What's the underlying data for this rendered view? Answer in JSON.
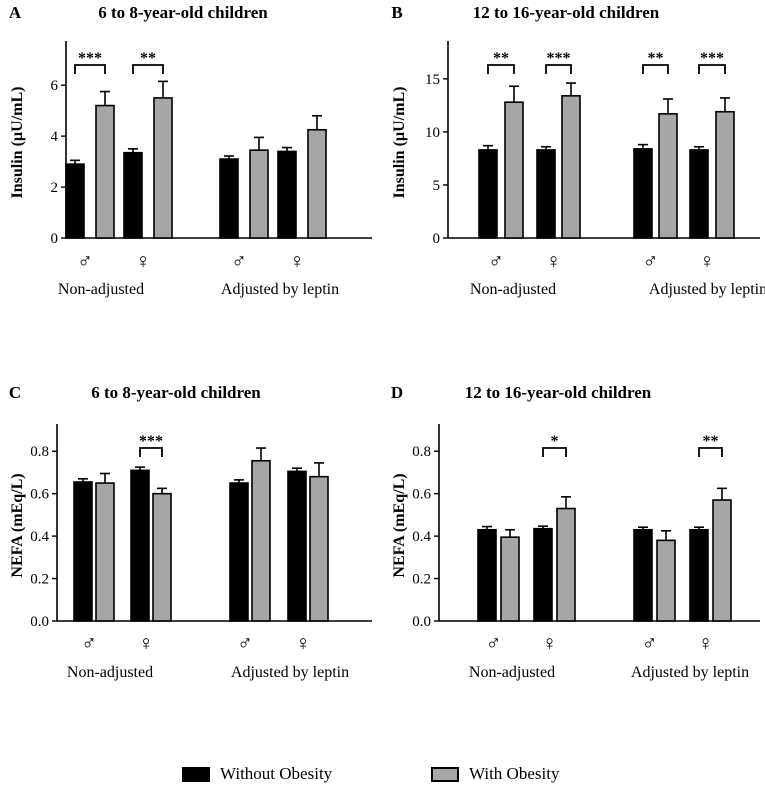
{
  "colors": {
    "without": "#000000",
    "with": "#a6a6a6",
    "axis": "#000000"
  },
  "legend": {
    "without_label": "Without Obesity",
    "with_label": "With Obesity"
  },
  "chart_data": [
    {
      "type": "bar",
      "panel": "A",
      "title": "6 to 8-year-old children",
      "ylabel": "Insulin (µU/mL)",
      "ylim": [
        0,
        7.5
      ],
      "yticks": [
        0,
        2,
        4,
        6
      ],
      "categories": [
        "♂",
        "♀",
        "♂",
        "♀"
      ],
      "groups": [
        "Non-adjusted",
        "Adjusted by leptin"
      ],
      "series": [
        {
          "name": "Without Obesity",
          "values": [
            2.9,
            3.35,
            3.1,
            3.4
          ],
          "errors": [
            0.15,
            0.15,
            0.12,
            0.15
          ]
        },
        {
          "name": "With Obesity",
          "values": [
            5.2,
            5.5,
            3.45,
            4.25
          ],
          "errors": [
            0.55,
            0.65,
            0.5,
            0.55
          ]
        }
      ],
      "significance": [
        "***",
        "**",
        "",
        ""
      ]
    },
    {
      "type": "bar",
      "panel": "B",
      "title": "12 to 16-year-old children",
      "ylabel": "Insulin (µU/mL)",
      "ylim": [
        0,
        18
      ],
      "yticks": [
        0,
        5,
        10,
        15
      ],
      "categories": [
        "♂",
        "♀",
        "♂",
        "♀"
      ],
      "groups": [
        "Non-adjusted",
        "Adjusted by leptin"
      ],
      "series": [
        {
          "name": "Without Obesity",
          "values": [
            8.3,
            8.3,
            8.4,
            8.3
          ],
          "errors": [
            0.4,
            0.3,
            0.4,
            0.3
          ]
        },
        {
          "name": "With Obesity",
          "values": [
            12.8,
            13.4,
            11.7,
            11.9
          ],
          "errors": [
            1.5,
            1.2,
            1.4,
            1.3
          ]
        }
      ],
      "significance": [
        "**",
        "***",
        "**",
        "***"
      ]
    },
    {
      "type": "bar",
      "panel": "C",
      "title": "6 to 8-year-old children",
      "ylabel": "NEFA (mEq/L)",
      "ylim": [
        0,
        0.9
      ],
      "yticks": [
        0.0,
        0.2,
        0.4,
        0.6,
        0.8
      ],
      "categories": [
        "♂",
        "♀",
        "♂",
        "♀"
      ],
      "groups": [
        "Non-adjusted",
        "Adjusted by leptin"
      ],
      "series": [
        {
          "name": "Without Obesity",
          "values": [
            0.655,
            0.71,
            0.65,
            0.705
          ],
          "errors": [
            0.015,
            0.015,
            0.015,
            0.015
          ]
        },
        {
          "name": "With Obesity",
          "values": [
            0.65,
            0.6,
            0.755,
            0.68
          ],
          "errors": [
            0.045,
            0.025,
            0.06,
            0.065
          ]
        }
      ],
      "significance": [
        "",
        "***",
        "",
        ""
      ]
    },
    {
      "type": "bar",
      "panel": "D",
      "title": "12 to 16-year-old children",
      "ylabel": "NEFA (mEq/L)",
      "ylim": [
        0,
        0.9
      ],
      "yticks": [
        0.0,
        0.2,
        0.4,
        0.6,
        0.8
      ],
      "categories": [
        "♂",
        "♀",
        "♂",
        "♀"
      ],
      "groups": [
        "Non-adjusted",
        "Adjusted by leptin"
      ],
      "series": [
        {
          "name": "Without Obesity",
          "values": [
            0.43,
            0.435,
            0.43,
            0.43
          ],
          "errors": [
            0.015,
            0.012,
            0.012,
            0.012
          ]
        },
        {
          "name": "With Obesity",
          "values": [
            0.395,
            0.53,
            0.38,
            0.57
          ],
          "errors": [
            0.035,
            0.055,
            0.045,
            0.055
          ]
        }
      ],
      "significance": [
        "",
        "*",
        "",
        "**"
      ]
    }
  ]
}
